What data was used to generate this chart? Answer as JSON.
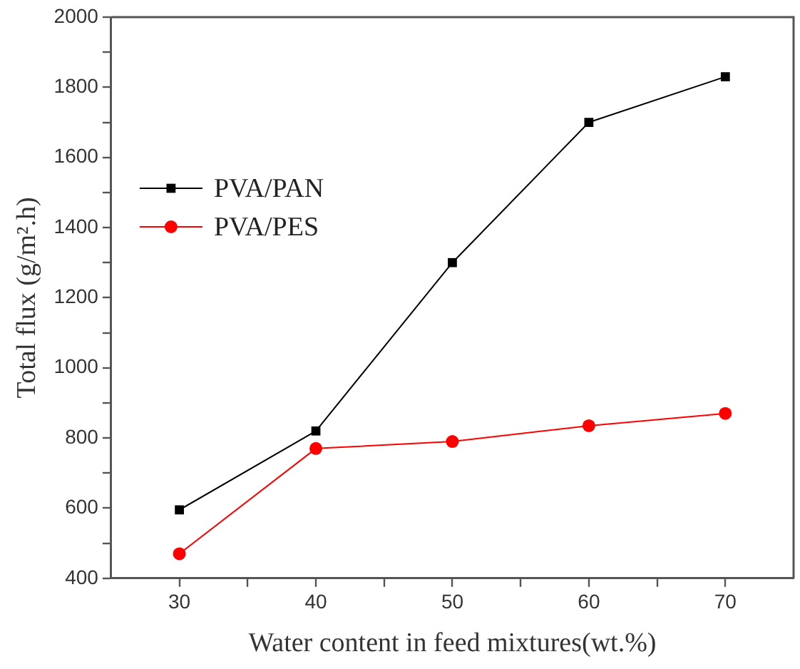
{
  "chart_data": {
    "type": "line",
    "xlabel": "Water content in feed mixtures(wt.%)",
    "ylabel": "Total flux (g/m².h)",
    "x": [
      30,
      40,
      50,
      60,
      70
    ],
    "series": [
      {
        "name": "PVA/PAN",
        "color": "#000000",
        "marker": "square",
        "values": [
          595,
          820,
          1300,
          1700,
          1830
        ]
      },
      {
        "name": "PVA/PES",
        "color": "#ff0000",
        "marker": "circle",
        "values": [
          470,
          770,
          790,
          835,
          870
        ]
      }
    ],
    "xlim": [
      25,
      75
    ],
    "xticks": [
      30,
      {
        "value": 35,
        "label": null
      },
      40,
      {
        "value": 45,
        "label": null
      },
      50,
      {
        "value": 55,
        "label": null
      },
      60,
      {
        "value": 65,
        "label": null
      },
      70
    ],
    "ylim": [
      400,
      2000
    ],
    "yticks": [
      400,
      {
        "value": 500,
        "label": null
      },
      600,
      {
        "value": 700,
        "label": null
      },
      800,
      {
        "value": 900,
        "label": null
      },
      1000,
      {
        "value": 1100,
        "label": null
      },
      1200,
      {
        "value": 1300,
        "label": null
      },
      1400,
      {
        "value": 1500,
        "label": null
      },
      1600,
      {
        "value": 1700,
        "label": null
      },
      1800,
      {
        "value": 1900,
        "label": null
      },
      2000
    ],
    "grid": false,
    "legend": "top left",
    "line_style": "solid"
  }
}
